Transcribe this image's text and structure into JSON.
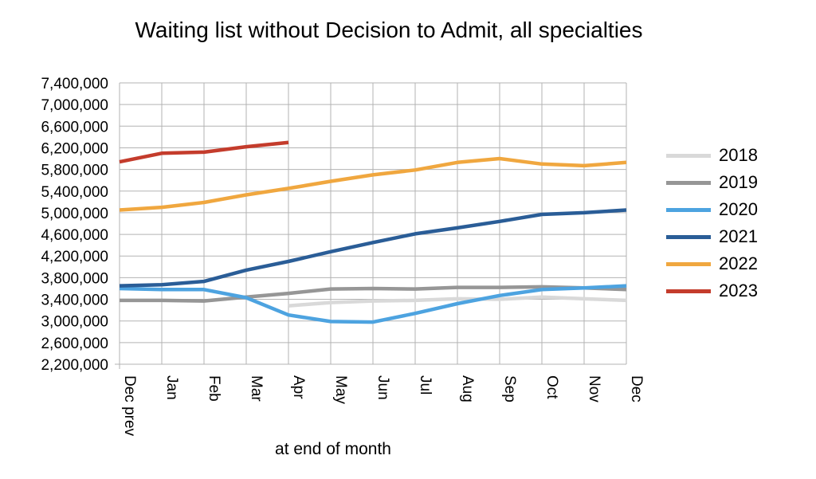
{
  "chart_data": {
    "type": "line",
    "title": "Waiting list without Decision to Admit, all specialties",
    "xlabel": "at end of month",
    "ylabel": "",
    "categories": [
      "Dec prev",
      "Jan",
      "Feb",
      "Mar",
      "Apr",
      "May",
      "Jun",
      "Jul",
      "Aug",
      "Sep",
      "Oct",
      "Nov",
      "Dec"
    ],
    "ylim": [
      2200000,
      7400000
    ],
    "yticks": [
      2200000,
      2600000,
      3000000,
      3400000,
      3800000,
      4200000,
      4600000,
      5000000,
      5400000,
      5800000,
      6200000,
      6600000,
      7000000,
      7400000
    ],
    "ytick_labels": [
      "2,200,000",
      "2,600,000",
      "3,000,000",
      "3,400,000",
      "3,800,000",
      "4,200,000",
      "4,600,000",
      "5,000,000",
      "5,400,000",
      "5,800,000",
      "6,200,000",
      "6,600,000",
      "7,000,000",
      "7,400,000"
    ],
    "grid": "horizontal and vertical",
    "legend_position": "right",
    "series": [
      {
        "name": "2018",
        "color": "#d9d9d9",
        "values": [
          null,
          null,
          null,
          null,
          3280000,
          3340000,
          3370000,
          3380000,
          3410000,
          3400000,
          3440000,
          3410000,
          3380000
        ]
      },
      {
        "name": "2019",
        "color": "#969696",
        "values": [
          3380000,
          3380000,
          3370000,
          3440000,
          3510000,
          3590000,
          3600000,
          3590000,
          3620000,
          3620000,
          3630000,
          3610000,
          3580000
        ]
      },
      {
        "name": "2020",
        "color": "#4da3e0",
        "values": [
          3600000,
          3580000,
          3580000,
          3430000,
          3110000,
          2990000,
          2980000,
          3140000,
          3320000,
          3470000,
          3580000,
          3610000,
          3650000
        ]
      },
      {
        "name": "2021",
        "color": "#2a5d97",
        "values": [
          3650000,
          3670000,
          3730000,
          3940000,
          4100000,
          4280000,
          4450000,
          4610000,
          4720000,
          4840000,
          4970000,
          5000000,
          5050000
        ]
      },
      {
        "name": "2022",
        "color": "#f0a73f",
        "values": [
          5050000,
          5100000,
          5190000,
          5330000,
          5450000,
          5580000,
          5700000,
          5790000,
          5930000,
          6000000,
          5900000,
          5870000,
          5930000
        ]
      },
      {
        "name": "2023",
        "color": "#c43c2c",
        "values": [
          5940000,
          6100000,
          6120000,
          6220000,
          6300000,
          null,
          null,
          null,
          null,
          null,
          null,
          null,
          null
        ]
      }
    ]
  }
}
